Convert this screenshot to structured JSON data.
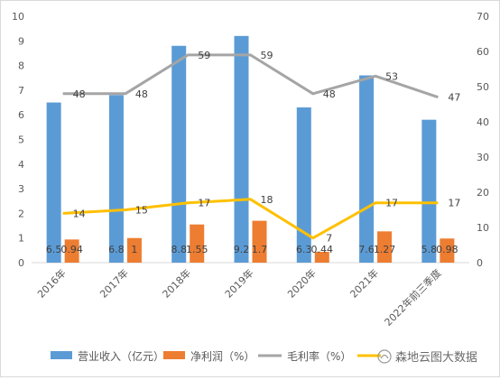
{
  "chart_data": {
    "type": "bar+line",
    "categories": [
      "2016年",
      "2017年",
      "2018年",
      "2019年",
      "2020年",
      "2021年",
      "2022年前三季度"
    ],
    "y_left": {
      "ylim": [
        0,
        10
      ],
      "ticks": [
        "0",
        "1",
        "2",
        "3",
        "4",
        "5",
        "6",
        "7",
        "8",
        "9",
        "10"
      ]
    },
    "y_right": {
      "ylim": [
        0,
        70
      ],
      "ticks": [
        "0",
        "10",
        "20",
        "30",
        "40",
        "50",
        "60",
        "70"
      ]
    },
    "grid": false,
    "legend_position": "bottom",
    "series": [
      {
        "name": "营业收入（亿元）",
        "type": "bar",
        "axis": "left",
        "color": "#5b9bd5",
        "values": [
          6.5,
          6.8,
          8.8,
          9.2,
          6.3,
          7.6,
          5.8
        ],
        "labels": [
          "6.5",
          "6.8",
          "8.8",
          "9.2",
          "6.3",
          "7.6",
          "5.8"
        ]
      },
      {
        "name": "净利润（%）",
        "type": "bar",
        "axis": "left",
        "color": "#ed7d31",
        "values": [
          0.94,
          1.0,
          1.55,
          1.7,
          0.44,
          1.27,
          0.98
        ],
        "labels": [
          "0.94",
          "1",
          "1.55",
          "1.7",
          "0.44",
          "1.27",
          "0.98"
        ]
      },
      {
        "name": "毛利率（%）",
        "type": "line",
        "axis": "right",
        "color": "#a5a5a5",
        "values": [
          48,
          48,
          59,
          59,
          48,
          53,
          47
        ],
        "labels": [
          "48",
          "48",
          "59",
          "59",
          "48",
          "53",
          "47"
        ]
      },
      {
        "name": "",
        "type": "line",
        "axis": "right",
        "color": "#ffc000",
        "values": [
          14,
          15,
          17,
          18,
          7,
          17,
          17
        ],
        "labels": [
          "14",
          "15",
          "17",
          "18",
          "7",
          "17",
          "17"
        ]
      }
    ]
  },
  "watermark": {
    "text": "森地云图大数据"
  }
}
